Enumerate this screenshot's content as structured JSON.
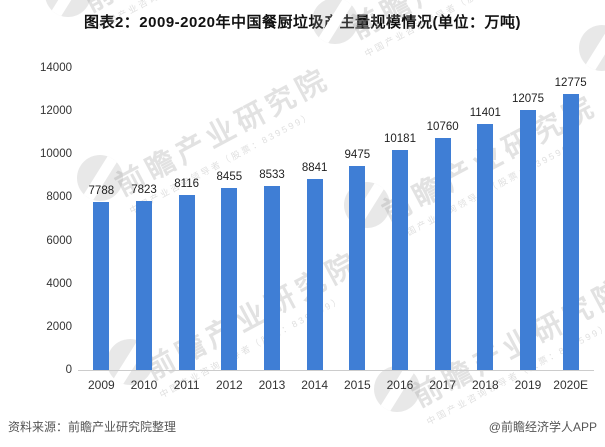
{
  "title": "图表2：2009-2020年中国餐厨垃圾产生量规模情况(单位：万吨)",
  "chart_data": {
    "type": "bar",
    "title": "图表2：2009-2020年中国餐厨垃圾产生量规模情况(单位：万吨)",
    "categories": [
      "2009",
      "2010",
      "2011",
      "2012",
      "2013",
      "2014",
      "2015",
      "2016",
      "2017",
      "2018",
      "2019",
      "2020E"
    ],
    "values": [
      7788,
      7823,
      8116,
      8455,
      8533,
      8841,
      9475,
      10181,
      10760,
      11401,
      12075,
      12775
    ],
    "xlabel": "",
    "ylabel": "",
    "unit": "万吨",
    "ylim": [
      0,
      14000
    ],
    "yticks": [
      0,
      2000,
      4000,
      6000,
      8000,
      10000,
      12000,
      14000
    ],
    "grid": false,
    "legend": false,
    "bar_color": "#3F7ED5"
  },
  "watermark": {
    "text": "前瞻产业研究院",
    "subtext": "中国产业咨询领导者（股票：839599）"
  },
  "footer": {
    "source": "资料来源：前瞻产业研究院整理",
    "credit": "@前瞻经济学人APP"
  },
  "colors": {
    "bar": "#3F7ED5",
    "axis_line": "#cccccc",
    "tick_text": "#333333",
    "value_text": "#1f1f1f",
    "footer_text": "#555555"
  }
}
